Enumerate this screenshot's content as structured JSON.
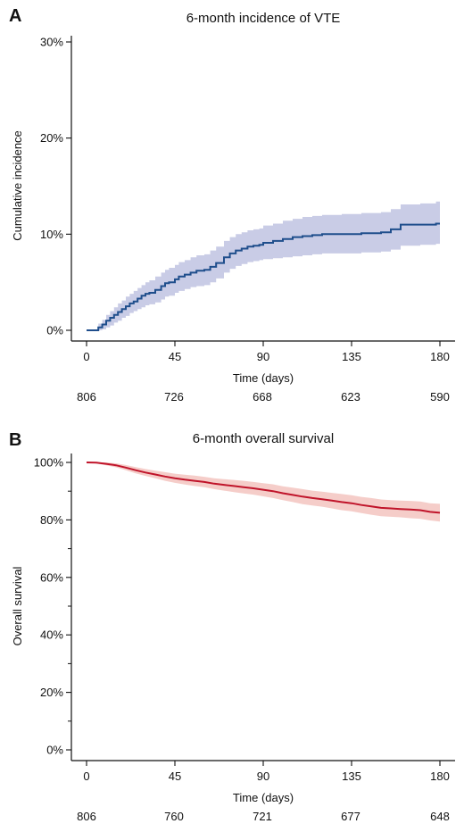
{
  "chart_data": [
    {
      "panel": "A",
      "type": "line",
      "title": "6-month incidence of VTE",
      "xlabel": "Time (days)",
      "ylabel": "Cumulative incidence",
      "xlim": [
        0,
        180
      ],
      "ylim": [
        0,
        30
      ],
      "xticks": [
        0,
        45,
        90,
        135,
        180
      ],
      "yticks": [
        0,
        10,
        20,
        30
      ],
      "ytick_labels": [
        "0%",
        "10%",
        "20%",
        "30%"
      ],
      "numbers_at_risk": [
        "806",
        "726",
        "668",
        "623",
        "590"
      ],
      "color": "#1f4e8c",
      "ci_color": "#c9cce6",
      "series": [
        {
          "x": [
            0,
            6,
            8,
            10,
            12,
            14,
            16,
            18,
            20,
            22,
            24,
            26,
            28,
            30,
            32,
            35,
            38,
            40,
            42,
            45,
            47,
            50,
            53,
            56,
            60,
            63,
            66,
            70,
            73,
            76,
            79,
            82,
            85,
            88,
            90,
            95,
            100,
            105,
            110,
            115,
            120,
            130,
            140,
            150,
            155,
            160,
            170,
            178,
            180
          ],
          "y": [
            0,
            0.3,
            0.6,
            1.0,
            1.3,
            1.6,
            1.9,
            2.2,
            2.5,
            2.8,
            3.0,
            3.3,
            3.6,
            3.8,
            3.9,
            4.2,
            4.6,
            4.9,
            5.0,
            5.3,
            5.6,
            5.8,
            6.0,
            6.2,
            6.3,
            6.6,
            7.0,
            7.6,
            8.0,
            8.3,
            8.5,
            8.7,
            8.8,
            8.9,
            9.1,
            9.3,
            9.5,
            9.7,
            9.8,
            9.9,
            10.0,
            10.0,
            10.1,
            10.2,
            10.5,
            11.0,
            11.0,
            11.1,
            11.1
          ],
          "lower": [
            0,
            0,
            0.1,
            0.3,
            0.5,
            0.8,
            1.0,
            1.3,
            1.5,
            1.8,
            2.0,
            2.2,
            2.4,
            2.6,
            2.7,
            2.9,
            3.2,
            3.5,
            3.6,
            3.9,
            4.1,
            4.3,
            4.5,
            4.6,
            4.7,
            5.0,
            5.4,
            6.0,
            6.4,
            6.7,
            6.9,
            7.1,
            7.2,
            7.3,
            7.4,
            7.5,
            7.6,
            7.7,
            7.8,
            7.9,
            8.0,
            8.0,
            8.1,
            8.2,
            8.4,
            8.8,
            8.9,
            9.0,
            9.0
          ],
          "upper": [
            0,
            0.7,
            1.1,
            1.6,
            2.0,
            2.4,
            2.8,
            3.1,
            3.5,
            3.8,
            4.1,
            4.4,
            4.7,
            5.0,
            5.2,
            5.6,
            6.0,
            6.3,
            6.5,
            6.8,
            7.1,
            7.3,
            7.6,
            7.8,
            7.9,
            8.3,
            8.7,
            9.3,
            9.7,
            10.0,
            10.2,
            10.4,
            10.5,
            10.6,
            10.9,
            11.1,
            11.4,
            11.6,
            11.8,
            11.9,
            12.0,
            12.1,
            12.2,
            12.3,
            12.6,
            13.1,
            13.2,
            13.4,
            13.4
          ]
        }
      ]
    },
    {
      "panel": "B",
      "type": "line",
      "title": "6-month overall survival",
      "xlabel": "Time (days)",
      "ylabel": "Overall survival",
      "xlim": [
        0,
        180
      ],
      "ylim": [
        0,
        100
      ],
      "xticks": [
        0,
        45,
        90,
        135,
        180
      ],
      "yticks": [
        0,
        20,
        40,
        60,
        80,
        100
      ],
      "ytick_labels": [
        "0%",
        "20%",
        "40%",
        "60%",
        "80%",
        "100%"
      ],
      "minor_yticks": [
        10,
        30,
        50,
        70,
        90
      ],
      "numbers_at_risk": [
        "806",
        "760",
        "721",
        "677",
        "648"
      ],
      "color": "#c0142a",
      "ci_color": "#f3c4c0",
      "series": [
        {
          "x": [
            0,
            5,
            10,
            15,
            20,
            25,
            30,
            35,
            40,
            45,
            50,
            55,
            60,
            65,
            70,
            75,
            80,
            85,
            90,
            95,
            100,
            105,
            110,
            115,
            120,
            125,
            130,
            135,
            140,
            145,
            150,
            155,
            160,
            165,
            170,
            175,
            180
          ],
          "y": [
            100,
            99.9,
            99.5,
            99.0,
            98.2,
            97.3,
            96.5,
            95.8,
            95.1,
            94.5,
            94.0,
            93.6,
            93.2,
            92.6,
            92.2,
            91.8,
            91.4,
            91.0,
            90.5,
            90.0,
            89.3,
            88.7,
            88.1,
            87.6,
            87.2,
            86.7,
            86.2,
            85.8,
            85.2,
            84.7,
            84.2,
            84.0,
            83.8,
            83.6,
            83.4,
            82.8,
            82.5
          ],
          "lower": [
            100,
            99.6,
            99.0,
            98.3,
            97.3,
            96.2,
            95.3,
            94.5,
            93.6,
            92.9,
            92.3,
            91.8,
            91.4,
            90.7,
            90.2,
            89.7,
            89.2,
            88.8,
            88.2,
            87.6,
            86.9,
            86.2,
            85.5,
            85.0,
            84.6,
            84.0,
            83.4,
            83.0,
            82.4,
            81.8,
            81.3,
            81.1,
            80.9,
            80.6,
            80.4,
            79.8,
            79.4
          ],
          "upper": [
            100,
            100,
            100,
            99.7,
            99.1,
            98.4,
            97.7,
            97.1,
            96.6,
            96.1,
            95.7,
            95.4,
            95.0,
            94.5,
            94.2,
            93.9,
            93.6,
            93.2,
            92.8,
            92.4,
            91.7,
            91.2,
            90.7,
            90.2,
            89.8,
            89.4,
            89.0,
            88.6,
            88.0,
            87.6,
            87.1,
            86.9,
            86.7,
            86.6,
            86.4,
            85.8,
            85.6
          ]
        }
      ]
    }
  ]
}
